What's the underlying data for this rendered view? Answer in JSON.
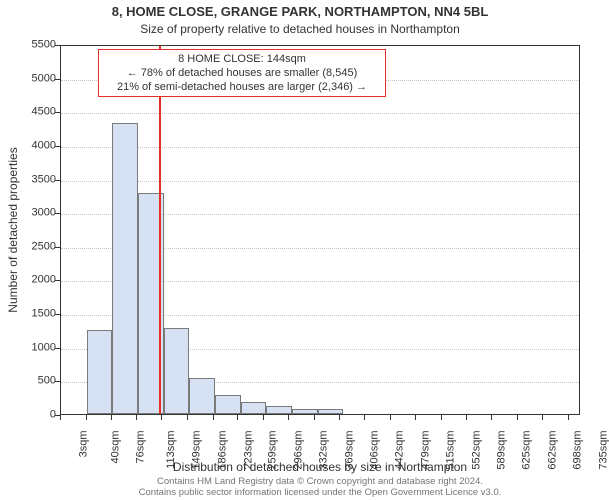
{
  "title": "8, HOME CLOSE, GRANGE PARK, NORTHAMPTON, NN4 5BL",
  "subtitle": "Size of property relative to detached houses in Northampton",
  "ylabel": "Number of detached properties",
  "xlabel": "Distribution of detached houses by size in Northampton",
  "footer_line1": "Contains HM Land Registry data © Crown copyright and database right 2024.",
  "footer_line2": "Contains public sector information licensed under the Open Government Licence v3.0.",
  "callout": {
    "line1": "8 HOME CLOSE: 144sqm",
    "line2": "← 78% of detached houses are smaller (8,545)",
    "line3": "21% of semi-detached houses are larger (2,346) →"
  },
  "chart": {
    "type": "histogram",
    "plot_background": "#ffffff",
    "bar_fill": "#d6e2f3",
    "bar_border": "#7a7a7a",
    "grid_color": "#c7c7c7",
    "axis_color": "#333333",
    "ref_line_color": "#e53027",
    "ref_line_value": 144,
    "x_domain_min": 3,
    "x_domain_max": 753,
    "bin_width": 37,
    "xtick_labels": [
      "3sqm",
      "40sqm",
      "76sqm",
      "113sqm",
      "149sqm",
      "186sqm",
      "223sqm",
      "259sqm",
      "296sqm",
      "332sqm",
      "369sqm",
      "406sqm",
      "442sqm",
      "479sqm",
      "515sqm",
      "552sqm",
      "589sqm",
      "625sqm",
      "662sqm",
      "698sqm",
      "735sqm"
    ],
    "xtick_values": [
      3,
      40,
      76,
      113,
      149,
      186,
      223,
      259,
      296,
      332,
      369,
      406,
      442,
      479,
      515,
      552,
      589,
      625,
      662,
      698,
      735
    ],
    "ylim": [
      0,
      5500
    ],
    "ytick_step": 500,
    "yticks": [
      0,
      500,
      1000,
      1500,
      2000,
      2500,
      3000,
      3500,
      4000,
      4500,
      5000,
      5500
    ],
    "values": [
      0,
      1250,
      4320,
      3280,
      1280,
      530,
      280,
      180,
      120,
      80,
      75,
      0,
      0,
      0,
      0,
      0,
      0,
      0,
      0,
      0
    ],
    "title_fontsize": 13,
    "subtitle_fontsize": 12,
    "label_fontsize": 12,
    "tick_fontsize": 11,
    "callout_fontsize": 11,
    "footer_fontsize": 9.5,
    "footer_color": "#757575",
    "text_color": "#333333"
  }
}
